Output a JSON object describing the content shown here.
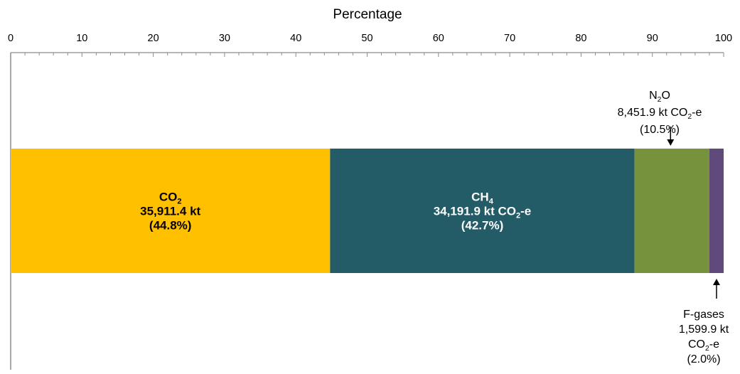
{
  "chart_data": {
    "type": "bar",
    "orientation": "horizontal-stacked",
    "title": "",
    "xlabel": "Percentage",
    "ylabel": "",
    "xlim": [
      0,
      100
    ],
    "ticks": [
      "0",
      "10",
      "20",
      "30",
      "40",
      "50",
      "60",
      "70",
      "80",
      "90",
      "100"
    ],
    "grid": false,
    "legend": "none",
    "series": [
      {
        "gas": "CO2",
        "value": 44.8,
        "color": "#FFC000",
        "label_color": "#000000",
        "label_lines": [
          [
            {
              "t": "CO"
            },
            {
              "t": "2",
              "sub": true
            }
          ],
          [
            {
              "t": "35,911.4 kt"
            }
          ],
          [
            {
              "t": "(44.8%)"
            }
          ]
        ]
      },
      {
        "gas": "CH4",
        "value": 42.7,
        "color": "#235B67",
        "label_color": "#ffffff",
        "label_lines": [
          [
            {
              "t": "CH"
            },
            {
              "t": "4",
              "sub": true
            }
          ],
          [
            {
              "t": "34,191.9 kt CO"
            },
            {
              "t": "2",
              "sub": true
            },
            {
              "t": "-e"
            }
          ],
          [
            {
              "t": "(42.7%)"
            }
          ]
        ]
      },
      {
        "gas": "N2O",
        "value": 10.5,
        "color": "#76923C",
        "label_color": "#000000",
        "annotation": "above",
        "label_lines": [
          [
            {
              "t": "N"
            },
            {
              "t": "2",
              "sub": true
            },
            {
              "t": "O"
            }
          ],
          [
            {
              "t": "8,451.9 kt CO"
            },
            {
              "t": "2",
              "sub": true
            },
            {
              "t": "-e"
            }
          ],
          [
            {
              "t": "(10.5%)"
            }
          ]
        ]
      },
      {
        "gas": "F-gases",
        "value": 2.0,
        "color": "#604A7B",
        "label_color": "#000000",
        "annotation": "below",
        "label_lines": [
          [
            {
              "t": "F-gases"
            }
          ],
          [
            {
              "t": "1,599.9 kt"
            }
          ],
          [
            {
              "t": "CO"
            },
            {
              "t": "2",
              "sub": true
            },
            {
              "t": "-e"
            }
          ],
          [
            {
              "t": "(2.0%)"
            }
          ]
        ]
      }
    ]
  }
}
